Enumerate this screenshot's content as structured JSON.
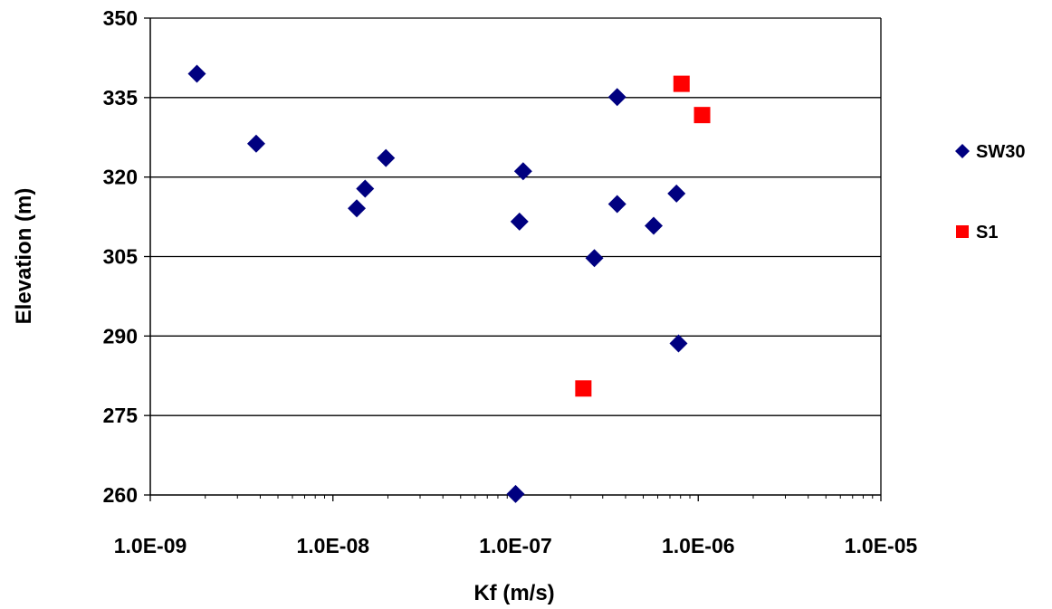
{
  "chart_data": {
    "type": "scatter",
    "title": "",
    "xlabel": "Kf (m/s)",
    "ylabel": "Elevation (m)",
    "x_scale": "log",
    "xlim": [
      1e-09,
      1e-05
    ],
    "ylim": [
      260,
      350
    ],
    "x_tick_values": [
      1e-09,
      1e-08,
      1e-07,
      1e-06,
      1e-05
    ],
    "x_tick_labels": [
      "1.0E-09",
      "1.0E-08",
      "1.0E-07",
      "1.0E-06",
      "1.0E-05"
    ],
    "y_ticks": [
      260,
      275,
      290,
      305,
      320,
      335,
      350
    ],
    "grid": "horizontal major gridlines",
    "legend_position": "right",
    "series": [
      {
        "name": "SW30",
        "marker": "diamond",
        "color": "#000080",
        "points": [
          {
            "x": 1.8e-09,
            "y": 339.5
          },
          {
            "x": 3.8e-09,
            "y": 326.3
          },
          {
            "x": 1.35e-08,
            "y": 314.1
          },
          {
            "x": 1.5e-08,
            "y": 317.8
          },
          {
            "x": 1.95e-08,
            "y": 323.6
          },
          {
            "x": 1e-07,
            "y": 260.2
          },
          {
            "x": 1.05e-07,
            "y": 311.6
          },
          {
            "x": 1.1e-07,
            "y": 321.1
          },
          {
            "x": 2.7e-07,
            "y": 304.7
          },
          {
            "x": 3.6e-07,
            "y": 335.1
          },
          {
            "x": 3.6e-07,
            "y": 314.9
          },
          {
            "x": 5.7e-07,
            "y": 310.8
          },
          {
            "x": 7.6e-07,
            "y": 316.9
          },
          {
            "x": 7.8e-07,
            "y": 288.6
          }
        ]
      },
      {
        "name": "S1",
        "marker": "square",
        "color": "#ff0000",
        "points": [
          {
            "x": 2.35e-07,
            "y": 280.1
          },
          {
            "x": 8.1e-07,
            "y": 337.6
          },
          {
            "x": 1.05e-06,
            "y": 331.7
          }
        ]
      }
    ]
  },
  "colors": {
    "background": "#ffffff",
    "gridline": "#000000",
    "axis": "#000000"
  }
}
